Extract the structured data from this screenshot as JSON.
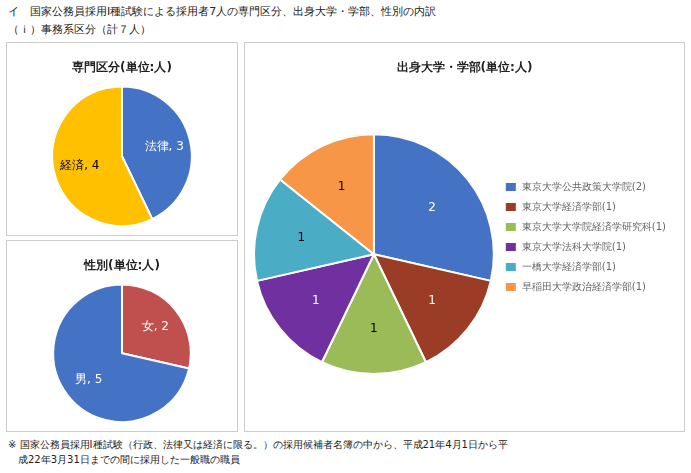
{
  "title": "イ　国家公務員採用Ⅰ種試験による採用者7人の専門区分、出身大学・学部、性別の内訳",
  "subtitle": "（ｉ）事務系区分（計７人）",
  "annotations": [
    "※ 国家公務員採用Ⅰ種試験（行政、法律又は経済に限る。）の採用候補者名簿の中から、平成21年4月1日から平\n　成22年3月31日までの間に採用した一般職の職員"
  ],
  "chart_data": [
    {
      "type": "pie",
      "title": "専門区分(単位:人)",
      "categories": [
        "法律",
        "経済"
      ],
      "values": [
        3,
        4
      ],
      "value_labels": [
        "法律, 3",
        "経済, 4"
      ],
      "colors": [
        "#4472C4",
        "#FFC000"
      ],
      "data_labels": true
    },
    {
      "type": "pie",
      "title": "性別(単位:人)",
      "categories": [
        "女",
        "男"
      ],
      "values": [
        2,
        5
      ],
      "value_labels": [
        "女, 2",
        "男, 5"
      ],
      "colors": [
        "#C0504D",
        "#4472C4"
      ],
      "data_labels": true
    },
    {
      "type": "pie",
      "title": "出身大学・学部(単位:人)",
      "categories": [
        "東京大学公共政策大学院(2)",
        "東京大学経済学部(1)",
        "東京大学大学院経済学研究科(1)",
        "東京大学法科大学院(1)",
        "一橋大学経済学部(1)",
        "早稲田大学政治経済学部(1)"
      ],
      "values": [
        2,
        1,
        1,
        1,
        1,
        1
      ],
      "colors": [
        "#4472C4",
        "#9B3C27",
        "#9BBB59",
        "#7030A0",
        "#4BACC6",
        "#F79646"
      ],
      "data_labels": true,
      "legend": "right"
    }
  ]
}
